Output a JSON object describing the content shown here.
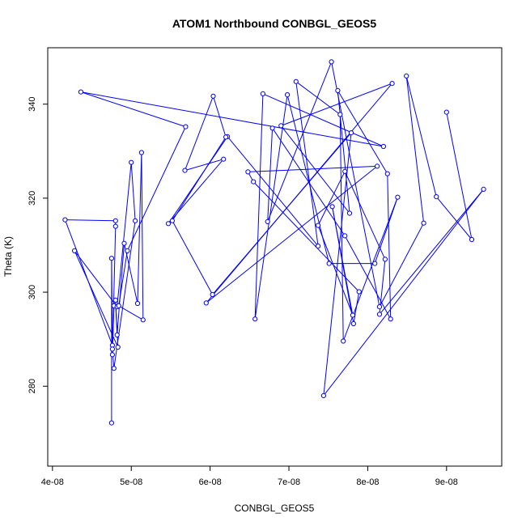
{
  "chart_data": {
    "type": "line",
    "title": "ATOM1 Northbound CONBGL_GEOS5",
    "xlabel": "CONBGL_GEOS5",
    "ylabel": "Theta (K)",
    "xlim": [
      3.94e-08,
      9.7e-08
    ],
    "ylim": [
      263,
      352
    ],
    "x_ticks": [
      4e-08,
      5e-08,
      6e-08,
      7e-08,
      8e-08,
      9e-08
    ],
    "x_tick_labels": [
      "4e-08",
      "5e-08",
      "6e-08",
      "7e-08",
      "8e-08",
      "9e-08"
    ],
    "y_ticks": [
      280,
      300,
      320,
      340
    ],
    "y_tick_labels": [
      "280",
      "300",
      "320",
      "340"
    ],
    "grid": false,
    "series_color": "#0000ff",
    "series": [
      {
        "points": [
          [
            4.75e-08,
            272.2
          ],
          [
            4.75e-08,
            307.2
          ],
          [
            4.76e-08,
            288.7
          ],
          [
            4.16e-08,
            315.4
          ],
          [
            4.8e-08,
            315.2
          ],
          [
            4.8e-08,
            314.0
          ],
          [
            4.76e-08,
            286.7
          ],
          [
            4.78e-08,
            297.1
          ],
          [
            4.76e-08,
            287.9
          ],
          [
            4.78e-08,
            283.8
          ],
          [
            5.05e-08,
            315.2
          ],
          [
            5e-08,
            327.6
          ],
          [
            4.82e-08,
            296.9
          ],
          [
            4.28e-08,
            308.8
          ],
          [
            4.83e-08,
            288.3
          ],
          [
            4.8e-08,
            298.3
          ],
          [
            4.82e-08,
            290.9
          ],
          [
            4.91e-08,
            310.4
          ],
          [
            5.08e-08,
            297.6
          ],
          [
            5.13e-08,
            329.7
          ],
          [
            5.15e-08,
            294.1
          ],
          [
            4.84e-08,
            297.1
          ],
          [
            4.95e-08,
            308.8
          ],
          [
            5.69e-08,
            335.2
          ],
          [
            4.36e-08,
            342.6
          ],
          [
            8.2e-08,
            331.0
          ],
          [
            6.67e-08,
            342.2
          ],
          [
            6.57e-08,
            294.3
          ],
          [
            6.98e-08,
            342.0
          ],
          [
            7.51e-08,
            306.1
          ],
          [
            8.09e-08,
            306.1
          ],
          [
            8.38e-08,
            320.2
          ],
          [
            7.69e-08,
            289.6
          ],
          [
            7.65e-08,
            337.8
          ],
          [
            7.09e-08,
            344.8
          ],
          [
            7.37e-08,
            309.8
          ],
          [
            6.22e-08,
            333.1
          ],
          [
            5.47e-08,
            314.6
          ],
          [
            6.17e-08,
            328.3
          ],
          [
            5.68e-08,
            325.9
          ],
          [
            6.04e-08,
            341.7
          ],
          [
            6.2e-08,
            333.0
          ],
          [
            5.52e-08,
            315.2
          ],
          [
            6.03e-08,
            299.5
          ],
          [
            7.79e-08,
            333.9
          ],
          [
            7.44e-08,
            278.0
          ],
          [
            9.47e-08,
            321.9
          ],
          [
            8.15e-08,
            295.3
          ],
          [
            8.22e-08,
            307.0
          ],
          [
            7.71e-08,
            325.7
          ],
          [
            7.37e-08,
            314.2
          ],
          [
            7.81e-08,
            295.1
          ],
          [
            7.55e-08,
            318.2
          ],
          [
            7.82e-08,
            293.3
          ],
          [
            7.89e-08,
            300.1
          ],
          [
            6.55e-08,
            323.5
          ],
          [
            6.48e-08,
            325.6
          ],
          [
            8.12e-08,
            326.8
          ],
          [
            5.95e-08,
            297.7
          ],
          [
            8.31e-08,
            344.4
          ],
          [
            6.9e-08,
            335.4
          ],
          [
            7.77e-08,
            316.8
          ],
          [
            7.62e-08,
            342.9
          ],
          [
            8.25e-08,
            325.2
          ],
          [
            8.29e-08,
            294.3
          ],
          [
            7.71e-08,
            312.0
          ],
          [
            6.79e-08,
            334.9
          ],
          [
            6.73e-08,
            315.0
          ],
          [
            7.54e-08,
            349.0
          ],
          [
            8.15e-08,
            296.9
          ],
          [
            8.71e-08,
            314.7
          ],
          [
            8.49e-08,
            346.0
          ],
          [
            8.87e-08,
            320.3
          ],
          [
            9.32e-08,
            311.2
          ],
          [
            9e-08,
            338.3
          ]
        ]
      }
    ]
  }
}
